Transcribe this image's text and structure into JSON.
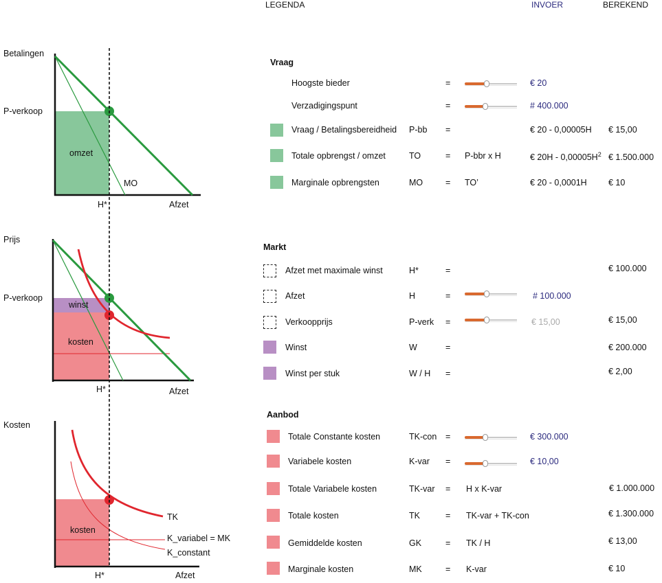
{
  "header": {
    "legend": "LEGENDA",
    "input": "INVOER",
    "computed": "BEREKEND"
  },
  "graphs": {
    "top": {
      "y_label": "Betalingen",
      "price_label": "P-verkoop",
      "area_label": "omzet",
      "mr_label": "MO",
      "h_label": "H*",
      "x_label": "Afzet"
    },
    "middle": {
      "y_label": "Prijs",
      "price_label": "P-verkoop",
      "profit_label": "winst",
      "cost_label": "kosten",
      "h_label": "H*",
      "x_label": "Afzet"
    },
    "bottom": {
      "y_label": "Kosten",
      "cost_label": "kosten",
      "tk_label": "TK",
      "kvar_label": "K_variabel = MK",
      "kcon_label": "K_constant",
      "h_label": "H*",
      "x_label": "Afzet"
    }
  },
  "colors": {
    "green_line": "#2a9a3f",
    "green_fill": "#88c79b",
    "red_line": "#e0262e",
    "red_fill": "#f08a8f",
    "purple_fill": "#b88fc4",
    "input_blue": "#2b2a7e",
    "slider_orange": "#d9692f"
  },
  "sections": {
    "vraag": {
      "title": "Vraag",
      "rows": [
        {
          "label": "Hoogste bieder",
          "eq": "=",
          "input": "€ 20",
          "slider": 0.42
        },
        {
          "label": "Verzadigingspunt",
          "eq": "=",
          "input": "# 400.000",
          "slider": 0.4
        },
        {
          "label": "Vraag / Betalingsbereidheid",
          "symbol": "P-bb",
          "eq": "=",
          "formula_input": "€ 20 - 0,00005H",
          "computed": "€ 15,00"
        },
        {
          "label": "Totale opbrengst / omzet",
          "symbol": "TO",
          "eq": "=",
          "formula": "P-bbr x H",
          "formula_input": "€ 20H - 0,00005H",
          "sup": "2",
          "computed": "€ 1.500.000"
        },
        {
          "label": "Marginale opbrengsten",
          "symbol": "MO",
          "eq": "=",
          "formula": "TO’",
          "formula_input": "€ 20 - 0,0001H",
          "computed": "€ 10"
        }
      ]
    },
    "markt": {
      "title": "Markt",
      "rows": [
        {
          "label": "Afzet met maximale winst",
          "symbol": "H*",
          "eq": "=",
          "computed": "€ 100.000"
        },
        {
          "label": "Afzet",
          "symbol": "H",
          "eq": "=",
          "input": "# 100.000",
          "slider": 0.42
        },
        {
          "label": "Verkoopprijs",
          "symbol": "P-verk",
          "eq": "=",
          "input": "€ 15,00",
          "slider": 0.42,
          "computed": "€ 15,00"
        },
        {
          "label": "Winst",
          "symbol": "W",
          "eq": "=",
          "computed": "€ 200.000"
        },
        {
          "label": "Winst per stuk",
          "symbol": "W / H",
          "eq": "=",
          "computed": "€ 2,00"
        }
      ]
    },
    "aanbod": {
      "title": "Aanbod",
      "rows": [
        {
          "label": "Totale Constante kosten",
          "symbol": "TK-con",
          "eq": "=",
          "input": "€ 300.000",
          "slider": 0.4
        },
        {
          "label": "Variabele kosten",
          "symbol": "K-var",
          "eq": "=",
          "input": "€ 10,00",
          "slider": 0.4
        },
        {
          "label": "Totale Variabele kosten",
          "symbol": "TK-var",
          "eq": "=",
          "formula": "H x K-var",
          "computed": "€ 1.000.000"
        },
        {
          "label": "Totale kosten",
          "symbol": "TK",
          "eq": "=",
          "formula": "TK-var + TK-con",
          "computed": "€ 1.300.000"
        },
        {
          "label": "Gemiddelde kosten",
          "symbol": "GK",
          "eq": "=",
          "formula": "TK / H",
          "computed": "€ 13,00"
        },
        {
          "label": "Marginale kosten",
          "symbol": "MK",
          "eq": "=",
          "formula": "K-var",
          "computed": "€ 10"
        }
      ]
    }
  }
}
